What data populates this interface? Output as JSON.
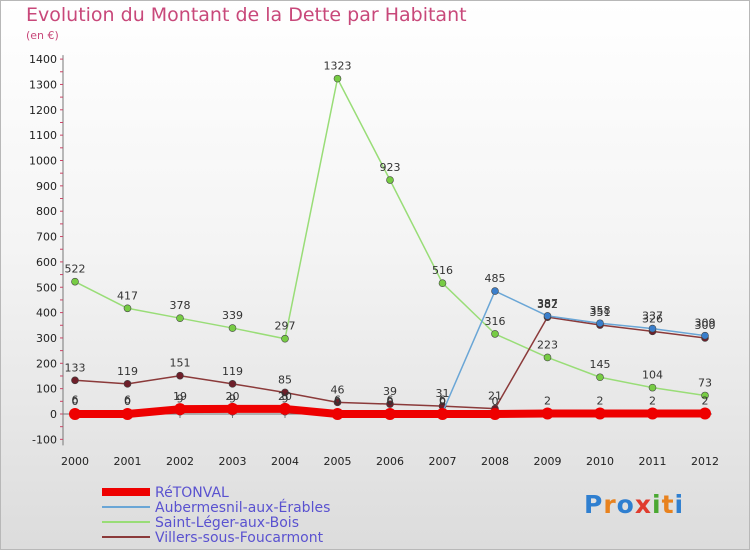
{
  "title": "Evolution du Montant de la Dette par Habitant",
  "subtitle": "(en €)",
  "logo": {
    "text": "Proxiti",
    "letters": [
      "P",
      "r",
      "o",
      "x",
      "i",
      "t",
      "i"
    ],
    "colors": [
      "#2f7fd0",
      "#e8821e",
      "#2f7fd0",
      "#e03c2e",
      "#4aa832",
      "#e8821e",
      "#2f7fd0"
    ]
  },
  "chart_data": {
    "type": "line",
    "categories": [
      "2000",
      "2001",
      "2002",
      "2003",
      "2004",
      "2005",
      "2006",
      "2007",
      "2008",
      "2009",
      "2010",
      "2011",
      "2012"
    ],
    "y_ticks": [
      "-100",
      "0",
      "100",
      "200",
      "300",
      "400",
      "500",
      "600",
      "700",
      "800",
      "900",
      "1000",
      "1100",
      "1200",
      "1300",
      "1400"
    ],
    "ylim": [
      -100,
      1400
    ],
    "grid": false,
    "legend_position": "bottom-left",
    "series": [
      {
        "name": "RéTONVAL",
        "color": "#ee0000",
        "dot": "#ee0000",
        "width": 8,
        "values": [
          0,
          0,
          19,
          20,
          20,
          0,
          0,
          0,
          0,
          2,
          2,
          2,
          2
        ],
        "labels": [
          "0",
          "0",
          "19",
          "20",
          "20",
          "0",
          "0",
          "0",
          "0",
          "2",
          "2",
          "2",
          "2"
        ]
      },
      {
        "name": "Aubermesnil-aux-Érables",
        "color": "#6aa6d6",
        "dot": "#3a7ecb",
        "width": 1.5,
        "values": [
          6,
          6,
          9,
          9,
          9,
          6,
          6,
          6,
          485,
          387,
          358,
          337,
          309
        ],
        "labels": [
          "6",
          "6",
          "9",
          "9",
          "9",
          "6",
          "6",
          "6",
          "485",
          "387",
          "358",
          "337",
          "309"
        ]
      },
      {
        "name": "Saint-Léger-aux-Bois",
        "color": "#99dd77",
        "dot": "#77cc44",
        "width": 1.5,
        "values": [
          522,
          417,
          378,
          339,
          297,
          1323,
          923,
          516,
          316,
          223,
          145,
          104,
          73
        ],
        "labels": [
          "522",
          "417",
          "378",
          "339",
          "297",
          "1323",
          "923",
          "516",
          "316",
          "223",
          "145",
          "104",
          "73"
        ]
      },
      {
        "name": "Villers-sous-Foucarmont",
        "color": "#8b3a3a",
        "dot": "#6e1f2a",
        "width": 1.5,
        "values": [
          133,
          119,
          151,
          119,
          85,
          46,
          39,
          31,
          21,
          382,
          351,
          326,
          300
        ],
        "labels": [
          "133",
          "119",
          "151",
          "119",
          "85",
          "46",
          "39",
          "31",
          "21",
          "382",
          "351",
          "326",
          "300"
        ]
      }
    ]
  }
}
